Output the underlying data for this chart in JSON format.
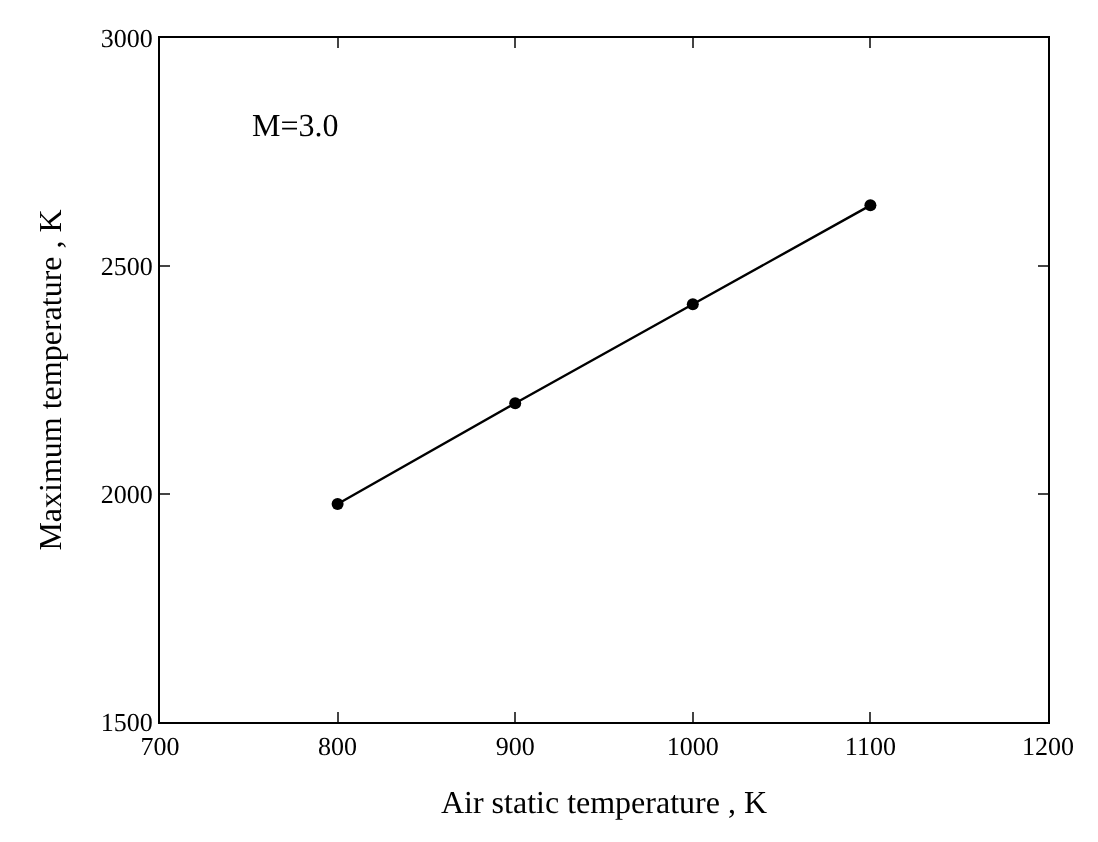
{
  "chart_data": {
    "type": "line",
    "xlabel": "Air static temperature , K",
    "ylabel": "Maximum temperature , K",
    "x": [
      800,
      900,
      1000,
      1100
    ],
    "series": [
      {
        "color": "#000000",
        "values": [
          1978,
          2199,
          2416,
          2633
        ]
      }
    ],
    "xlim": [
      700,
      1200
    ],
    "xticks": [
      700,
      800,
      900,
      1000,
      1100,
      1200
    ],
    "ylim": [
      1500,
      3000
    ],
    "yticks": [
      1500,
      2000,
      2500,
      3000
    ],
    "annotations": [
      "M=3.0"
    ],
    "marker": "circle",
    "line_style": "solid"
  }
}
